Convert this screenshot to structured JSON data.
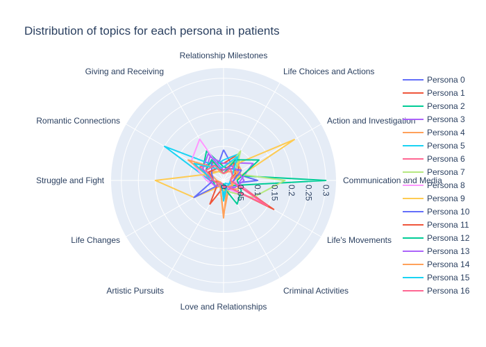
{
  "chart_data": {
    "type": "radar",
    "title": "Distribution of topics for each persona in patients",
    "categories": [
      "Relationship Milestones",
      "Life Choices and Actions",
      "Action and Investigation",
      "Communication and Media",
      "Life's Movements",
      "Criminal Activities",
      "Love and Relationships",
      "Artistic Pursuits",
      "Life Changes",
      "Struggle and Fight",
      "Romantic Connections",
      "Giving and Receiving"
    ],
    "radial_range": [
      0,
      0.33
    ],
    "radial_ticks": [
      "0",
      "0.05",
      "0.1",
      "0.15",
      "0.2",
      "0.25",
      "0.3"
    ],
    "radial_tick_values": [
      0,
      0.05,
      0.1,
      0.15,
      0.2,
      0.25,
      0.3
    ],
    "legend_position": "right",
    "series": [
      {
        "name": "Persona 0",
        "color": "#636efa",
        "values": [
          0.09,
          0.05,
          0.04,
          0.1,
          0.02,
          0.01,
          0.02,
          0.01,
          0.02,
          0.03,
          0.05,
          0.04
        ]
      },
      {
        "name": "Persona 1",
        "color": "#EF553B",
        "values": [
          0.05,
          0.09,
          0.05,
          0.03,
          0.03,
          0.02,
          0.02,
          0.02,
          0.01,
          0.04,
          0.08,
          0.06
        ]
      },
      {
        "name": "Persona 2",
        "color": "#00cc96",
        "values": [
          0.04,
          0.04,
          0.03,
          0.3,
          0.03,
          0.02,
          0.01,
          0.02,
          0.03,
          0.04,
          0.07,
          0.1
        ]
      },
      {
        "name": "Persona 3",
        "color": "#ab63fa",
        "values": [
          0.05,
          0.06,
          0.1,
          0.05,
          0.04,
          0.02,
          0.02,
          0.01,
          0.02,
          0.03,
          0.06,
          0.08
        ]
      },
      {
        "name": "Persona 4",
        "color": "#FFA15A",
        "values": [
          0.04,
          0.07,
          0.06,
          0.04,
          0.05,
          0.03,
          0.1,
          0.02,
          0.01,
          0.02,
          0.05,
          0.03
        ]
      },
      {
        "name": "Persona 5",
        "color": "#19d3f3",
        "values": [
          0.06,
          0.09,
          0.04,
          0.02,
          0.02,
          0.01,
          0.05,
          0.01,
          0.03,
          0.04,
          0.2,
          0.05
        ]
      },
      {
        "name": "Persona 6",
        "color": "#FF6692",
        "values": [
          0.03,
          0.05,
          0.04,
          0.03,
          0.16,
          0.02,
          0.02,
          0.01,
          0.03,
          0.04,
          0.08,
          0.05
        ]
      },
      {
        "name": "Persona 7",
        "color": "#B6E880",
        "values": [
          0.02,
          0.1,
          0.04,
          0.18,
          0.1,
          0.04,
          0.02,
          0.01,
          0.02,
          0.03,
          0.04,
          0.03
        ]
      },
      {
        "name": "Persona 8",
        "color": "#FF97FF",
        "values": [
          0.02,
          0.04,
          0.03,
          0.03,
          0.12,
          0.03,
          0.02,
          0.02,
          0.03,
          0.05,
          0.11,
          0.14
        ]
      },
      {
        "name": "Persona 9",
        "color": "#FECB52",
        "values": [
          0.03,
          0.05,
          0.24,
          0.03,
          0.03,
          0.02,
          0.03,
          0.02,
          0.1,
          0.2,
          0.04,
          0.03
        ]
      },
      {
        "name": "Persona 10",
        "color": "#636efa",
        "values": [
          0.02,
          0.04,
          0.06,
          0.03,
          0.02,
          0.02,
          0.02,
          0.01,
          0.1,
          0.03,
          0.04,
          0.07
        ]
      },
      {
        "name": "Persona 11",
        "color": "#EF553B",
        "values": [
          0.03,
          0.06,
          0.04,
          0.02,
          0.17,
          0.02,
          0.02,
          0.08,
          0.02,
          0.03,
          0.05,
          0.04
        ]
      },
      {
        "name": "Persona 12",
        "color": "#00cc96",
        "values": [
          0.02,
          0.07,
          0.12,
          0.04,
          0.06,
          0.08,
          0.02,
          0.02,
          0.03,
          0.03,
          0.06,
          0.07
        ]
      },
      {
        "name": "Persona 13",
        "color": "#ab63fa",
        "values": [
          0.03,
          0.05,
          0.05,
          0.06,
          0.04,
          0.03,
          0.02,
          0.02,
          0.03,
          0.04,
          0.07,
          0.09
        ]
      },
      {
        "name": "Persona 14",
        "color": "#FFA15A",
        "values": [
          0.02,
          0.03,
          0.05,
          0.02,
          0.03,
          0.02,
          0.11,
          0.02,
          0.02,
          0.03,
          0.12,
          0.04
        ]
      },
      {
        "name": "Persona 15",
        "color": "#19d3f3",
        "values": [
          0.04,
          0.08,
          0.03,
          0.02,
          0.02,
          0.02,
          0.06,
          0.01,
          0.02,
          0.03,
          0.1,
          0.04
        ]
      },
      {
        "name": "Persona 16",
        "color": "#FF6692",
        "values": [
          0.02,
          0.04,
          0.03,
          0.02,
          0.15,
          0.02,
          0.02,
          0.01,
          0.02,
          0.03,
          0.06,
          0.05
        ]
      }
    ]
  }
}
